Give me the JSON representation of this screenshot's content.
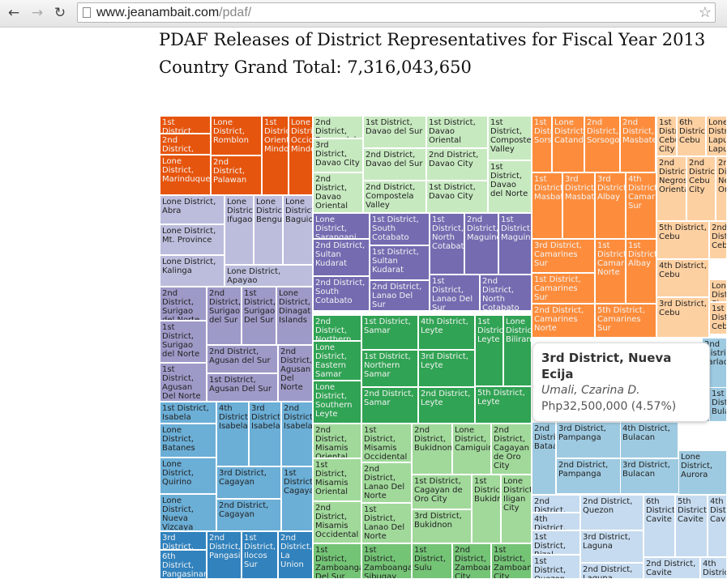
{
  "browser": {
    "url_host": "www.jeanambait.com",
    "url_path": "/pdaf/",
    "icons": [
      "back-arrow-icon",
      "forward-arrow-icon",
      "reload-icon",
      "page-icon",
      "bookmark-star-icon"
    ]
  },
  "page": {
    "title": "PDAF Releases of District Representatives for Fiscal Year 2013",
    "grand_total_label": "Country Grand Total: 7,316,043,650"
  },
  "tooltip": {
    "district": "3rd District, Nueva Ecija",
    "representative": "Umali, Czarina D.",
    "amount": "Php32,500,000 (4.57%)"
  },
  "chart_data": {
    "type": "treemap",
    "title": "PDAF Releases of District Representatives for Fiscal Year 2013",
    "total": 7316043650,
    "colors": {
      "dark_orange": "#e6550d",
      "lavender": "#bcbddc",
      "light_green": "#c7e9c0",
      "dark_purple": "#756bb1",
      "light_purple": "#9e9ac8",
      "green": "#31a354",
      "medium_green": "#74c476",
      "pale_green": "#a1d99b",
      "blue": "#6baed6",
      "dark_blue": "#3182bd",
      "orange": "#fd8d3c",
      "peach": "#fdd0a2",
      "pale_blue": "#c6dbef",
      "light_blue": "#9ecae1"
    },
    "cells": [
      {
        "label": "1st District, Palawan",
        "c": "dark_orange"
      },
      {
        "label": "2nd District, Oriental",
        "c": "dark_orange"
      },
      {
        "label": "Lone District, Marinduque",
        "c": "dark_orange"
      },
      {
        "label": "Lone District, Romblon",
        "c": "dark_orange"
      },
      {
        "label": "2nd District, Palawan",
        "c": "dark_orange"
      },
      {
        "label": "1st District, Oriental Mindoro",
        "c": "dark_orange"
      },
      {
        "label": "Lone District, Occidental Mindoro",
        "c": "dark_orange"
      },
      {
        "label": "Lone District, Abra",
        "c": "lavender"
      },
      {
        "label": "Lone District, Mt. Province",
        "c": "lavender"
      },
      {
        "label": "Lone District, Kalinga",
        "c": "lavender"
      },
      {
        "label": "Lone District, Ifugao",
        "c": "lavender"
      },
      {
        "label": "Lone District, Benguet",
        "c": "lavender"
      },
      {
        "label": "Lone District, Baguio",
        "c": "lavender"
      },
      {
        "label": "Lone District, Apayao",
        "c": "lavender"
      },
      {
        "label": "2nd District, Davao del Norte",
        "c": "light_green"
      },
      {
        "label": "3rd District, Davao City",
        "c": "light_green"
      },
      {
        "label": "2nd District, Davao Oriental",
        "c": "light_green"
      },
      {
        "label": "1st District, Davao del Sur",
        "c": "light_green"
      },
      {
        "label": "2nd District, Davao del Sur",
        "c": "light_green"
      },
      {
        "label": "2nd District, Compostela Valley",
        "c": "light_green"
      },
      {
        "label": "1st District, Davao Oriental",
        "c": "light_green"
      },
      {
        "label": "2nd District, Davao City",
        "c": "light_green"
      },
      {
        "label": "1st District, Davao City",
        "c": "light_green"
      },
      {
        "label": "1st District, Compostela Valley",
        "c": "light_green"
      },
      {
        "label": "1st District, Davao del Norte",
        "c": "light_green"
      },
      {
        "label": "Lone District, Sarangani",
        "c": "dark_purple"
      },
      {
        "label": "2nd District, Sultan Kudarat",
        "c": "dark_purple"
      },
      {
        "label": "2nd District, South Cotabato",
        "c": "dark_purple"
      },
      {
        "label": "1st District, South Cotabato",
        "c": "dark_purple"
      },
      {
        "label": "1st District, Sultan Kudarat",
        "c": "dark_purple"
      },
      {
        "label": "2nd District, Lanao Del Sur",
        "c": "dark_purple"
      },
      {
        "label": "1st District, North Cotabato",
        "c": "dark_purple"
      },
      {
        "label": "2nd District, Maguindanao",
        "c": "dark_purple"
      },
      {
        "label": "1st District, Maguindanao",
        "c": "dark_purple"
      },
      {
        "label": "1st District, Lanao Del Sur",
        "c": "dark_purple"
      },
      {
        "label": "2nd District, North Cotabato",
        "c": "dark_purple"
      },
      {
        "label": "2nd District, Surigao del Norte",
        "c": "light_purple"
      },
      {
        "label": "1st District, Surigao del Norte",
        "c": "light_purple"
      },
      {
        "label": "1st District, Agusan Del Norte",
        "c": "light_purple"
      },
      {
        "label": "2nd District, Surigao del Sur",
        "c": "light_purple"
      },
      {
        "label": "1st District, Surigao Del Sur",
        "c": "light_purple"
      },
      {
        "label": "Lone District, Dinagat Islands",
        "c": "light_purple"
      },
      {
        "label": "2nd District, Agusan del Sur",
        "c": "light_purple"
      },
      {
        "label": "2nd District, Agusan Del Norte",
        "c": "light_purple"
      },
      {
        "label": "1st District, Agusan Del Sur",
        "c": "light_purple"
      },
      {
        "label": "2nd District, Northern Samar",
        "c": "green"
      },
      {
        "label": "Lone District, Eastern Samar",
        "c": "green"
      },
      {
        "label": "Lone District, Southern Leyte",
        "c": "green"
      },
      {
        "label": "1st District, Samar",
        "c": "green"
      },
      {
        "label": "1st District, Northern Samar",
        "c": "green"
      },
      {
        "label": "2nd District, Samar",
        "c": "green"
      },
      {
        "label": "4th District, Leyte",
        "c": "green"
      },
      {
        "label": "3rd District, Leyte",
        "c": "green"
      },
      {
        "label": "2nd District, Leyte",
        "c": "green"
      },
      {
        "label": "1st District, Leyte",
        "c": "green"
      },
      {
        "label": "Lone District, Biliran",
        "c": "green"
      },
      {
        "label": "5th District, Leyte",
        "c": "green"
      },
      {
        "label": "2nd District, Misamis Oriental",
        "c": "pale_green"
      },
      {
        "label": "1st District, Misamis Oriental",
        "c": "pale_green"
      },
      {
        "label": "2nd District, Misamis Occidental",
        "c": "pale_green"
      },
      {
        "label": "1st District, Misamis Occidental",
        "c": "pale_green"
      },
      {
        "label": "2nd District, Lanao Del Norte",
        "c": "pale_green"
      },
      {
        "label": "1st District, Lanao Del Norte",
        "c": "pale_green"
      },
      {
        "label": "2nd District, Bukidnon",
        "c": "pale_green"
      },
      {
        "label": "Lone District, Camiguin",
        "c": "pale_green"
      },
      {
        "label": "2nd District, Cagayan de Oro City",
        "c": "pale_green"
      },
      {
        "label": "1st District, Cagayan de Oro City",
        "c": "pale_green"
      },
      {
        "label": "3rd District, Bukidnon",
        "c": "pale_green"
      },
      {
        "label": "1st District, Bukidnon",
        "c": "pale_green"
      },
      {
        "label": "Lone District, Iligan City",
        "c": "pale_green"
      },
      {
        "label": "1st District, Zamboanga Del Sur",
        "c": "medium_green"
      },
      {
        "label": "1st District, Zamboanga Sibugay",
        "c": "medium_green"
      },
      {
        "label": "1st District, Sulu",
        "c": "medium_green"
      },
      {
        "label": "2nd District, Zamboanga City",
        "c": "medium_green"
      },
      {
        "label": "1st District, Zamboanga City",
        "c": "medium_green"
      },
      {
        "label": "1st District, Isabela",
        "c": "blue"
      },
      {
        "label": "Lone District, Batanes",
        "c": "blue"
      },
      {
        "label": "Lone District, Quirino",
        "c": "blue"
      },
      {
        "label": "Lone District, Nueva Vizcaya",
        "c": "blue"
      },
      {
        "label": "4th District, Isabela",
        "c": "blue"
      },
      {
        "label": "3rd District, Isabela",
        "c": "blue"
      },
      {
        "label": "2nd District, Isabela",
        "c": "blue"
      },
      {
        "label": "3rd District, Cagayan",
        "c": "blue"
      },
      {
        "label": "2nd District, Cagayan",
        "c": "blue"
      },
      {
        "label": "1st District, Cagayan",
        "c": "blue"
      },
      {
        "label": "3rd District, Pangasinan",
        "c": "dark_blue"
      },
      {
        "label": "6th District, Pangasinan",
        "c": "dark_blue"
      },
      {
        "label": "2nd District, Pangasinan",
        "c": "dark_blue"
      },
      {
        "label": "1st District, Ilocos Sur",
        "c": "dark_blue"
      },
      {
        "label": "2nd District, La Union",
        "c": "dark_blue"
      },
      {
        "label": "1st District, Sorsogon",
        "c": "orange"
      },
      {
        "label": "Lone District, Catanduanes",
        "c": "orange"
      },
      {
        "label": "2nd District, Sorsogon",
        "c": "orange"
      },
      {
        "label": "2nd District, Masbate",
        "c": "orange"
      },
      {
        "label": "1st District, Masbate",
        "c": "orange"
      },
      {
        "label": "3rd District, Masbate",
        "c": "orange"
      },
      {
        "label": "3rd District, Albay",
        "c": "orange"
      },
      {
        "label": "4th District, Camarines Sur",
        "c": "orange"
      },
      {
        "label": "3rd District, Camarines Sur",
        "c": "orange"
      },
      {
        "label": "1st District, Camarines Sur",
        "c": "orange"
      },
      {
        "label": "1st District, Camarines Norte",
        "c": "orange"
      },
      {
        "label": "1st District, Albay",
        "c": "orange"
      },
      {
        "label": "2nd District, Camarines Norte",
        "c": "orange"
      },
      {
        "label": "5th District, Camarines Sur",
        "c": "orange"
      },
      {
        "label": "1st District, Cebu City",
        "c": "peach"
      },
      {
        "label": "6th District, Cebu",
        "c": "peach"
      },
      {
        "label": "Lone District, Lapu-Lapu",
        "c": "peach"
      },
      {
        "label": "2nd District, Negros Oriental",
        "c": "peach"
      },
      {
        "label": "2nd District, Cebu City",
        "c": "peach"
      },
      {
        "label": "2nd District, Negros Oriental",
        "c": "peach"
      },
      {
        "label": "5th District, Cebu",
        "c": "peach"
      },
      {
        "label": "2nd District, Cebu",
        "c": "peach"
      },
      {
        "label": "4th District, Cebu",
        "c": "peach"
      },
      {
        "label": "Lone District, Siquijor",
        "c": "peach"
      },
      {
        "label": "3rd District, Cebu",
        "c": "peach"
      },
      {
        "label": "1st District, Cebu",
        "c": "peach"
      },
      {
        "label": "2nd District, Bataan",
        "c": "light_blue"
      },
      {
        "label": "3rd District, Pampanga",
        "c": "light_blue"
      },
      {
        "label": "4th District, Bulacan",
        "c": "light_blue"
      },
      {
        "label": "2nd District, Pampanga",
        "c": "light_blue"
      },
      {
        "label": "3rd District, Bulacan",
        "c": "light_blue"
      },
      {
        "label": "Lone District, Aurora",
        "c": "light_blue"
      },
      {
        "label": "2nd District, Tarlac",
        "c": "light_blue"
      },
      {
        "label": "1st District, Bulacan",
        "c": "light_blue"
      },
      {
        "label": "2nd District, Batangas",
        "c": "pale_blue"
      },
      {
        "label": "4th District, Laguna",
        "c": "pale_blue"
      },
      {
        "label": "1st District, Rizal",
        "c": "pale_blue"
      },
      {
        "label": "1st District, Quezon",
        "c": "pale_blue"
      },
      {
        "label": "2nd District, Quezon",
        "c": "pale_blue"
      },
      {
        "label": "3rd District, Laguna",
        "c": "pale_blue"
      },
      {
        "label": "2nd District, Laguna",
        "c": "pale_blue"
      },
      {
        "label": "6th District, Cavite",
        "c": "pale_blue"
      },
      {
        "label": "5th District, Cavite",
        "c": "pale_blue"
      },
      {
        "label": "4th District, Cavite",
        "c": "pale_blue"
      },
      {
        "label": "2nd District, Cavite",
        "c": "pale_blue"
      },
      {
        "label": "4th District, Batangas",
        "c": "pale_blue"
      }
    ]
  }
}
